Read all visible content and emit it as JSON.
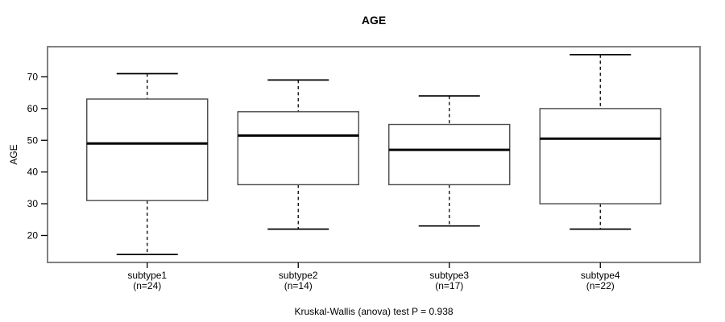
{
  "chart_data": {
    "type": "boxplot",
    "title": "AGE",
    "xlabel": "",
    "ylabel": "AGE",
    "caption": "Kruskal-Wallis (anova) test P = 0.938",
    "categories": [
      "subtype1",
      "subtype2",
      "subtype3",
      "subtype4"
    ],
    "category_sublabels": [
      "(n=24)",
      "(n=14)",
      "(n=17)",
      "(n=22)"
    ],
    "counts": [
      24,
      14,
      17,
      22
    ],
    "series": [
      {
        "name": "subtype1",
        "n": 24,
        "whisker_low": 14,
        "q1": 31,
        "median": 49,
        "q3": 63,
        "whisker_high": 71
      },
      {
        "name": "subtype2",
        "n": 14,
        "whisker_low": 22,
        "q1": 36,
        "median": 51.5,
        "q3": 59,
        "whisker_high": 69
      },
      {
        "name": "subtype3",
        "n": 17,
        "whisker_low": 23,
        "q1": 36,
        "median": 47,
        "q3": 55,
        "whisker_high": 64
      },
      {
        "name": "subtype4",
        "n": 22,
        "whisker_low": 22,
        "q1": 30,
        "median": 50.5,
        "q3": 60,
        "whisker_high": 77
      }
    ],
    "yticks": [
      20,
      30,
      40,
      50,
      60,
      70
    ],
    "ylim": [
      11.5,
      79.5
    ],
    "grid": false,
    "legend": "none",
    "colors": {
      "frame": "#808080",
      "box_border": "#4a4a4a",
      "box_fill": "#ffffff",
      "median": "#000000",
      "whisker": "#000000",
      "tick": "#000000",
      "text": "#000000",
      "background": "#ffffff"
    }
  }
}
